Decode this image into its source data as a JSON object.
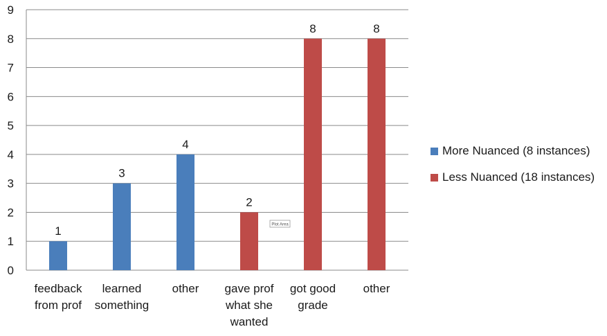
{
  "chart_data": {
    "type": "bar",
    "categories": [
      [
        "feedback",
        "from prof"
      ],
      [
        "learned",
        "something"
      ],
      [
        "other"
      ],
      [
        "gave prof",
        "what she",
        "wanted"
      ],
      [
        "got good",
        "grade"
      ],
      [
        "other"
      ]
    ],
    "series": [
      {
        "name": "More Nuanced (8 instances)",
        "color": "#4a7ebb",
        "values": [
          1,
          3,
          4,
          null,
          null,
          null
        ]
      },
      {
        "name": "Less Nuanced (18 instances)",
        "color": "#be4b48",
        "values": [
          null,
          null,
          null,
          2,
          8,
          8
        ]
      }
    ],
    "data_labels": [
      "1",
      "3",
      "4",
      "2",
      "8",
      "8"
    ],
    "ylim": [
      0,
      9
    ],
    "yticks": [
      "0",
      "1",
      "2",
      "3",
      "4",
      "5",
      "6",
      "7",
      "8",
      "9"
    ],
    "grid": true,
    "legend_position": "right",
    "annotation": "Plot Area"
  }
}
